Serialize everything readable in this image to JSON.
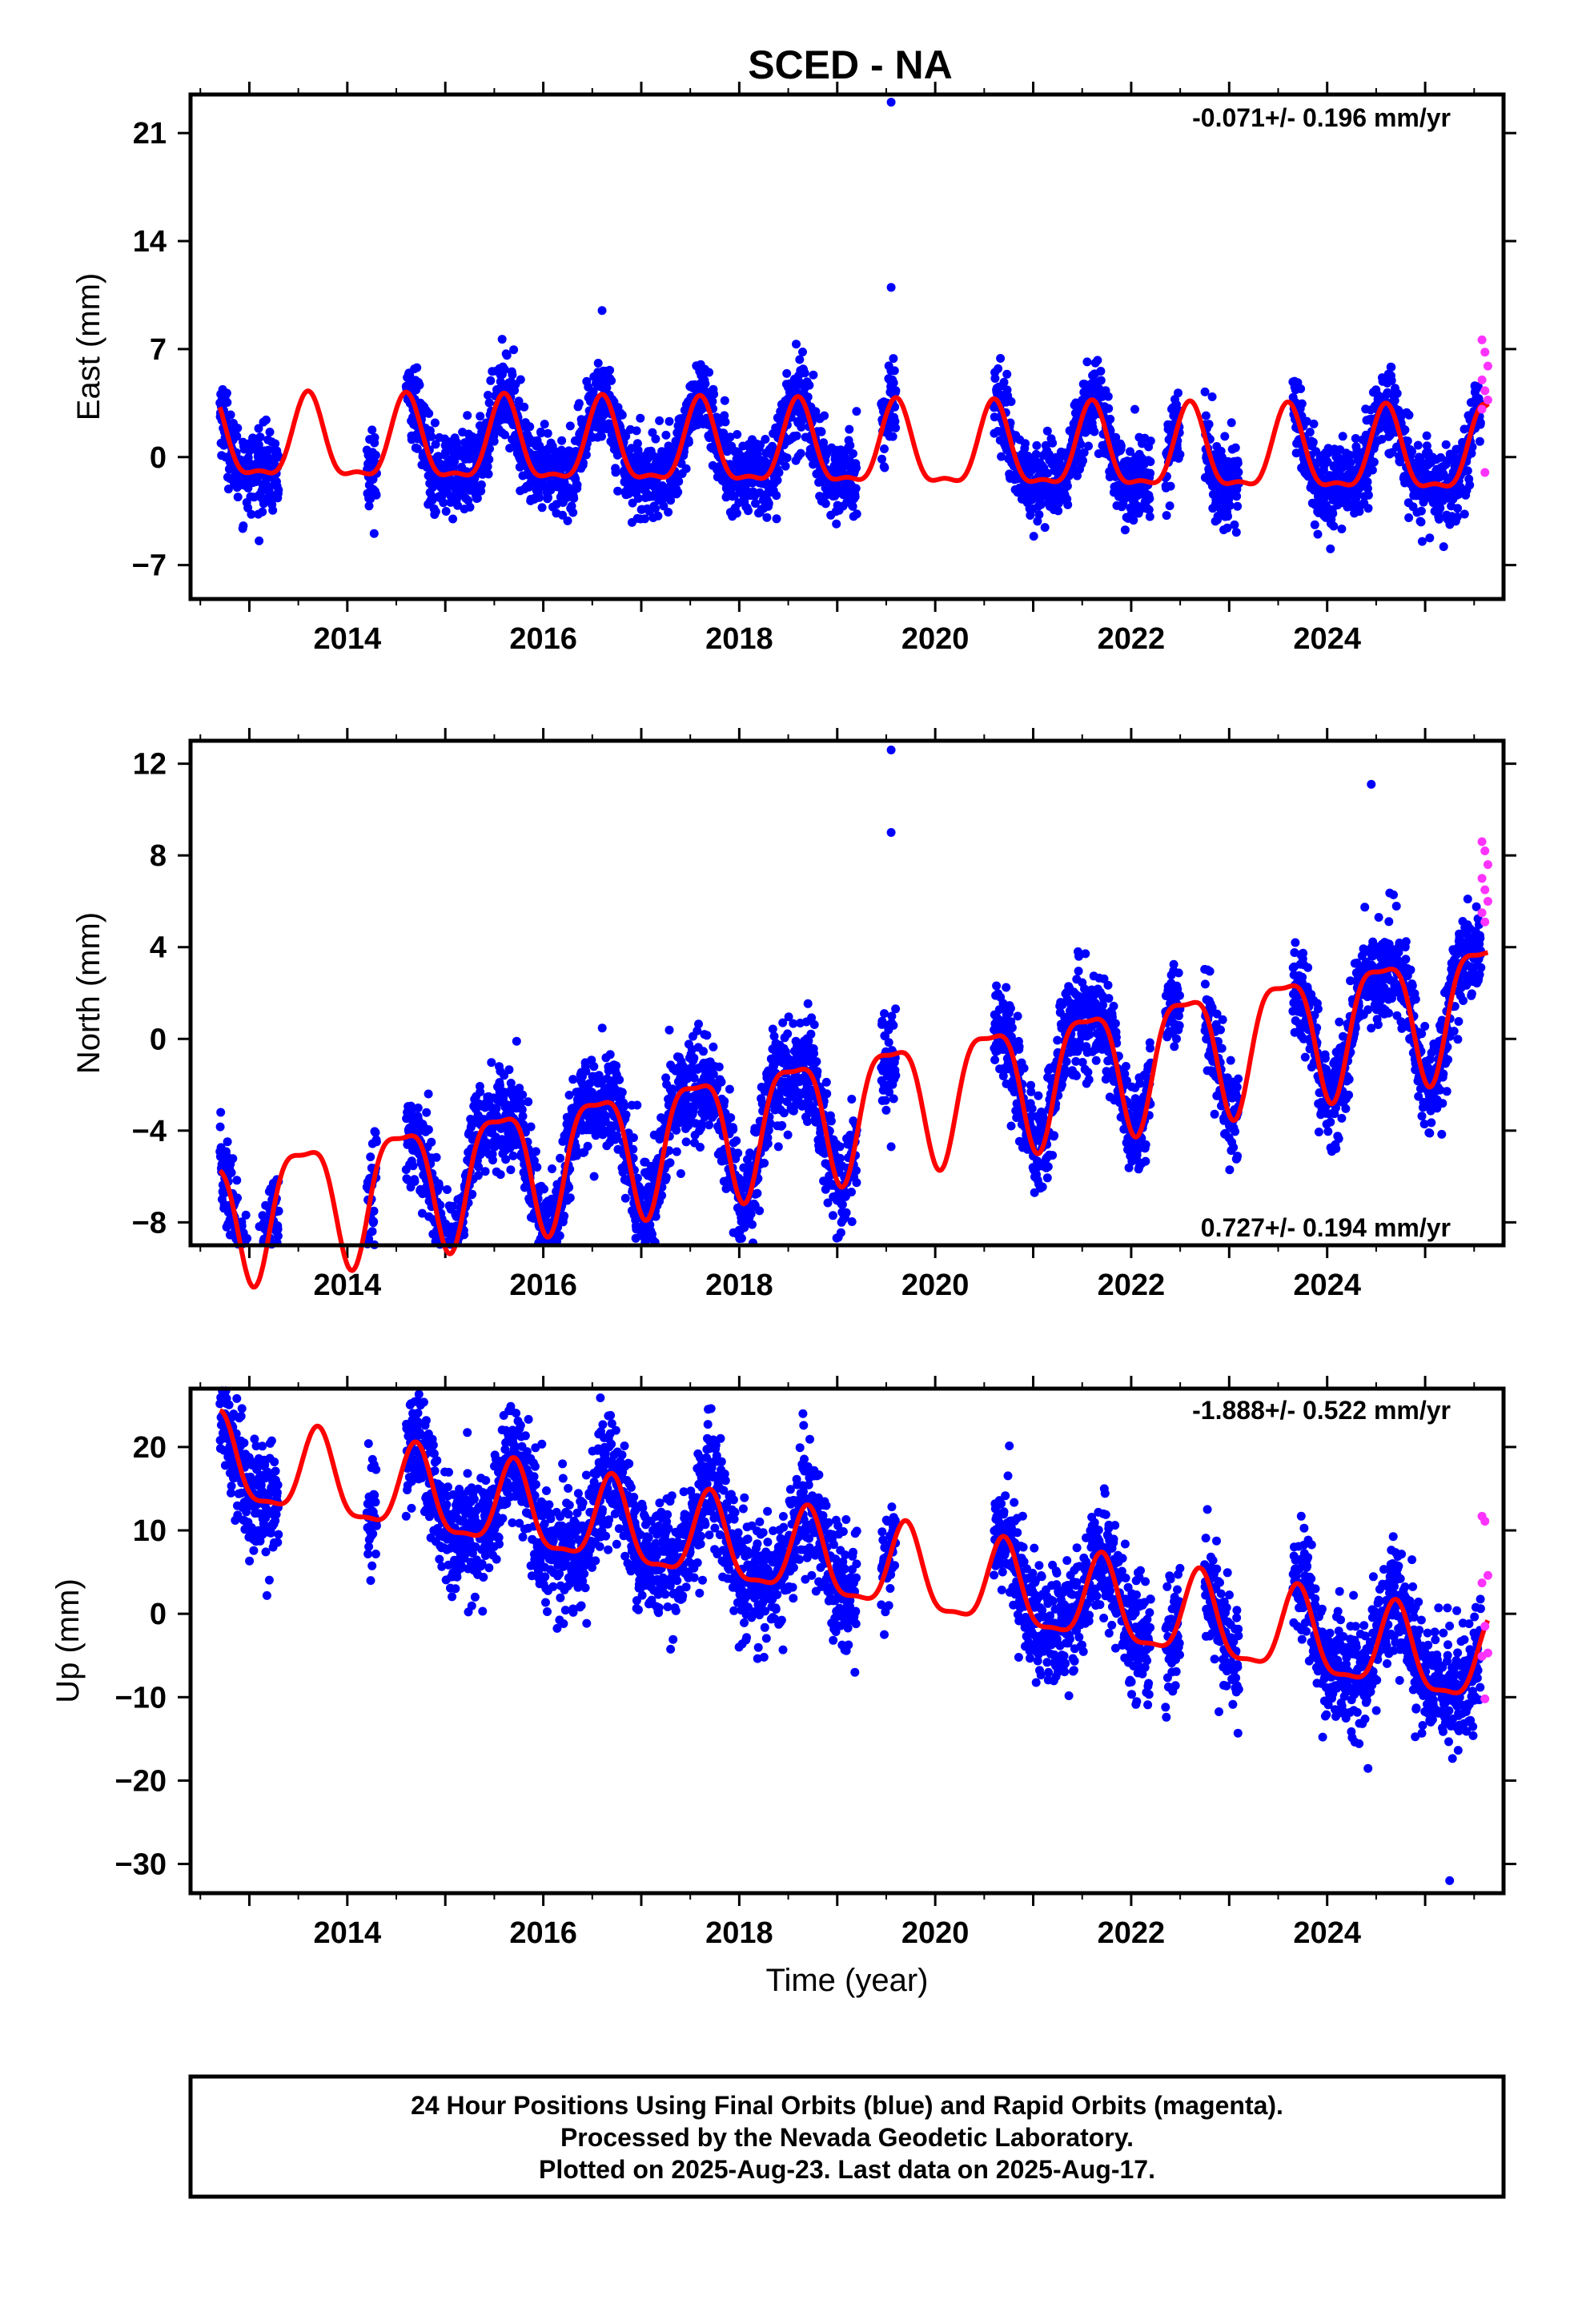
{
  "figure_title": "SCED - NA",
  "colors": {
    "final_orbits": "#0000ff",
    "rapid_orbits": "#ff33ff",
    "model": "#ff0000",
    "frame": "#000000"
  },
  "footer": {
    "line1": "24 Hour Positions Using Final Orbits (blue) and Rapid Orbits (magenta).",
    "line2": "Processed by the Nevada Geodetic Laboratory.",
    "line3": "Plotted on 2025-Aug-23. Last data on 2025-Aug-17."
  },
  "chart_data": [
    {
      "type": "scatter",
      "component": "east",
      "ylabel": "East (mm)",
      "xlabel": "",
      "rate_label": "-0.071+/- 0.196 mm/yr",
      "rate_position": "top-right",
      "xlim": [
        2012.4,
        2025.8
      ],
      "ylim": [
        -9.2,
        23.5
      ],
      "xticks": [
        2014,
        2016,
        2018,
        2020,
        2022,
        2024
      ],
      "yticks": [
        -7,
        0,
        7,
        14,
        21
      ],
      "model": {
        "trend": -0.071,
        "offset": 0.4,
        "annual_amplitude": 2.6,
        "annual_peak": 0.6,
        "semiannual_amplitude": 0.9,
        "semiannual_peak": 0.1,
        "noise_sd": 1.3
      },
      "data_spans": [
        [
          2012.7,
          2013.3
        ],
        [
          2014.2,
          2014.3
        ],
        [
          2014.6,
          2019.2
        ],
        [
          2019.45,
          2019.6
        ],
        [
          2020.6,
          2022.2
        ],
        [
          2022.35,
          2022.5
        ],
        [
          2022.75,
          2023.1
        ],
        [
          2023.65,
          2025.57
        ]
      ],
      "outliers": [
        {
          "x": 2019.55,
          "y": 23.0
        },
        {
          "x": 2019.55,
          "y": 11.0
        },
        {
          "x": 2016.6,
          "y": 9.5
        }
      ],
      "rapid_orbits": {
        "x_range": [
          2025.58,
          2025.64
        ],
        "y_values": [
          7.6,
          6.8,
          5.9,
          5.0,
          4.3,
          3.7,
          3.1,
          -1.0
        ]
      }
    },
    {
      "type": "scatter",
      "component": "north",
      "ylabel": "North (mm)",
      "xlabel": "",
      "rate_label": "0.727+/- 0.194 mm/yr",
      "rate_position": "bottom-right",
      "xlim": [
        2012.4,
        2025.8
      ],
      "ylim": [
        -9.0,
        13.0
      ],
      "xticks": [
        2014,
        2016,
        2018,
        2020,
        2022,
        2024
      ],
      "yticks": [
        -8,
        -4,
        0,
        4,
        8,
        12
      ],
      "model": {
        "trend": 0.727,
        "offset": -3.0,
        "annual_amplitude": 2.7,
        "annual_peak": 0.55,
        "semiannual_amplitude": 0.8,
        "semiannual_peak": 0.3,
        "noise_sd": 1.1
      },
      "data_spans": [
        [
          2012.7,
          2013.3
        ],
        [
          2014.2,
          2014.3
        ],
        [
          2014.6,
          2019.2
        ],
        [
          2019.45,
          2019.6
        ],
        [
          2020.6,
          2022.2
        ],
        [
          2022.35,
          2022.5
        ],
        [
          2022.75,
          2023.1
        ],
        [
          2023.65,
          2025.57
        ]
      ],
      "outliers": [
        {
          "x": 2019.55,
          "y": 12.6
        },
        {
          "x": 2019.55,
          "y": 9.0
        },
        {
          "x": 2019.55,
          "y": -4.7
        },
        {
          "x": 2024.45,
          "y": 11.1
        }
      ],
      "rapid_orbits": {
        "x_range": [
          2025.58,
          2025.64
        ],
        "y_values": [
          8.6,
          8.2,
          7.6,
          7.0,
          6.5,
          6.0,
          5.5,
          5.1
        ]
      }
    },
    {
      "type": "scatter",
      "component": "up",
      "ylabel": "Up (mm)",
      "xlabel": "Time (year)",
      "rate_label": "-1.888+/- 0.522 mm/yr",
      "rate_position": "top-right",
      "xlim": [
        2012.4,
        2025.8
      ],
      "ylim": [
        -33.5,
        27.0
      ],
      "xticks": [
        2014,
        2016,
        2018,
        2020,
        2022,
        2024
      ],
      "yticks": [
        -30,
        -20,
        -10,
        0,
        10,
        20
      ],
      "model": {
        "trend": -1.888,
        "offset": 6.0,
        "annual_amplitude": 5.0,
        "annual_peak": 0.7,
        "semiannual_amplitude": 1.5,
        "semiannual_peak": 0.2,
        "noise_sd": 3.5
      },
      "data_spans": [
        [
          2012.7,
          2013.3
        ],
        [
          2014.2,
          2014.3
        ],
        [
          2014.6,
          2019.2
        ],
        [
          2019.45,
          2019.6
        ],
        [
          2020.6,
          2022.2
        ],
        [
          2022.35,
          2022.5
        ],
        [
          2022.75,
          2023.1
        ],
        [
          2023.65,
          2025.57
        ]
      ],
      "outliers": [
        {
          "x": 2018.65,
          "y": 24.0
        },
        {
          "x": 2012.75,
          "y": 26.0
        },
        {
          "x": 2025.25,
          "y": -32.0
        }
      ],
      "rapid_orbits": {
        "x_range": [
          2025.58,
          2025.64
        ],
        "y_values": [
          11.7,
          11.1,
          4.6,
          3.7,
          -1.5,
          -4.7,
          -5.1,
          -10.2
        ]
      }
    }
  ]
}
